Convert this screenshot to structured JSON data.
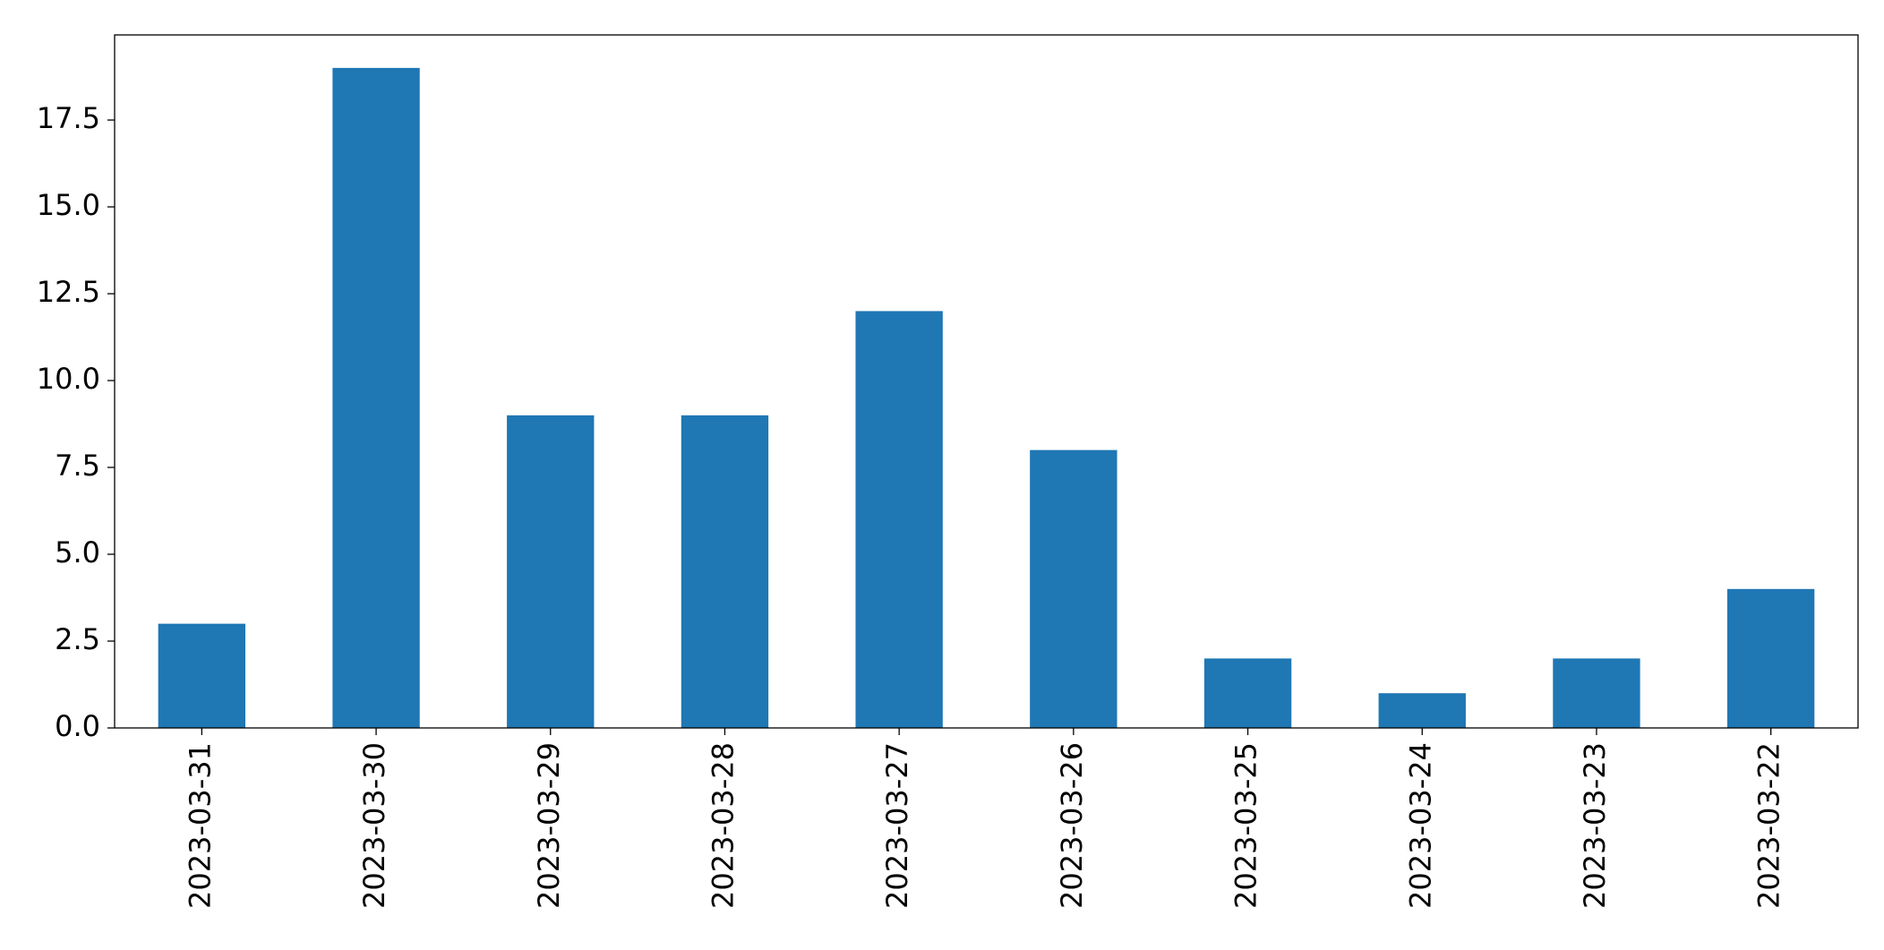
{
  "chart_data": {
    "type": "bar",
    "categories": [
      "2023-03-31",
      "2023-03-30",
      "2023-03-29",
      "2023-03-28",
      "2023-03-27",
      "2023-03-26",
      "2023-03-25",
      "2023-03-24",
      "2023-03-23",
      "2023-03-22"
    ],
    "values": [
      3,
      19,
      9,
      9,
      12,
      8,
      2,
      1,
      2,
      4
    ],
    "color": "#1f77b4",
    "ylim": [
      0,
      19.95
    ],
    "yticks": [
      {
        "value": 0,
        "label": "0.0"
      },
      2.5,
      {
        "value": 5,
        "label": "5.0"
      },
      7.5,
      {
        "value": 10,
        "label": "10.0"
      },
      12.5,
      {
        "value": 15,
        "label": "15.0"
      },
      17.5
    ],
    "grid": false
  }
}
